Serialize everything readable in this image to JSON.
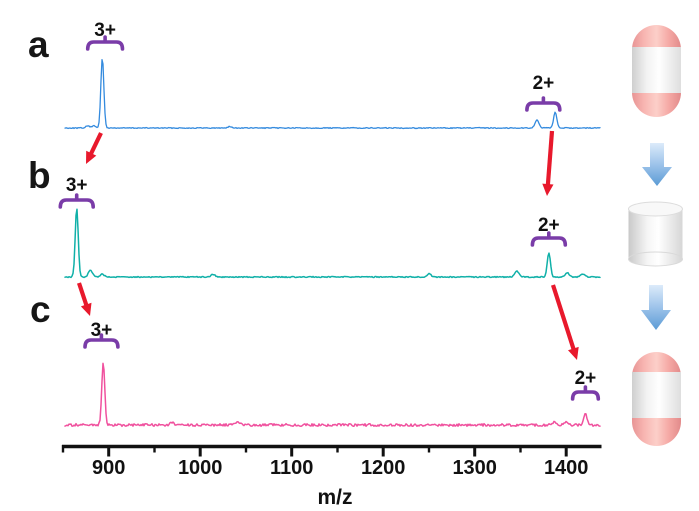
{
  "figure": {
    "panels": [
      {
        "id": "a",
        "label": "a"
      },
      {
        "id": "b",
        "label": "b"
      },
      {
        "id": "c",
        "label": "c"
      }
    ]
  },
  "chart_data": {
    "type": "line",
    "xlabel": "m/z",
    "x_axis": {
      "range": [
        850,
        1438
      ],
      "major_ticks": [
        900,
        1000,
        1100,
        1200,
        1300,
        1400
      ],
      "minor_ticks": [
        850,
        950,
        1050,
        1150,
        1250,
        1350
      ]
    },
    "spectra": [
      {
        "panel": "a",
        "color": "#338ade",
        "peaks": [
          {
            "mz": 877,
            "rel_intensity": 3
          },
          {
            "mz": 884,
            "rel_intensity": 3
          },
          {
            "mz": 893,
            "rel_intensity": 100,
            "label": "3+",
            "bracket_mz": [
              877,
              915
            ]
          },
          {
            "mz": 1032,
            "rel_intensity": 2
          },
          {
            "mz": 1368,
            "rel_intensity": 11
          },
          {
            "mz": 1388,
            "rel_intensity": 23,
            "label": "2+",
            "bracket_mz": [
              1357,
              1393
            ]
          }
        ]
      },
      {
        "panel": "b",
        "color": "#10b0a8",
        "peaks": [
          {
            "mz": 865,
            "rel_intensity": 100,
            "label": "3+",
            "bracket_mz": [
              847,
              883
            ]
          },
          {
            "mz": 880,
            "rel_intensity": 10
          },
          {
            "mz": 893,
            "rel_intensity": 4
          },
          {
            "mz": 1014,
            "rel_intensity": 4
          },
          {
            "mz": 1250,
            "rel_intensity": 5
          },
          {
            "mz": 1346,
            "rel_intensity": 9
          },
          {
            "mz": 1381,
            "rel_intensity": 35,
            "label": "2+",
            "bracket_mz": [
              1363,
              1399
            ]
          },
          {
            "mz": 1401,
            "rel_intensity": 6
          },
          {
            "mz": 1418,
            "rel_intensity": 4
          }
        ]
      },
      {
        "panel": "c",
        "color": "#f0519e",
        "peaks": [
          {
            "mz": 894,
            "rel_intensity": 100,
            "label": "3+",
            "bracket_mz": [
              874,
              910
            ]
          },
          {
            "mz": 969,
            "rel_intensity": 5
          },
          {
            "mz": 1041,
            "rel_intensity": 6
          },
          {
            "mz": 1388,
            "rel_intensity": 5
          },
          {
            "mz": 1400,
            "rel_intensity": 5
          },
          {
            "mz": 1421,
            "rel_intensity": 19,
            "label": "2+",
            "bracket_mz": [
              1407,
              1435
            ]
          }
        ]
      }
    ],
    "annotations": {
      "red_arrows": [
        {
          "from": "a 3+",
          "to": "b 3+"
        },
        {
          "from": "a 2+",
          "to": "b 2+"
        },
        {
          "from": "b 3+",
          "to": "c 3+"
        },
        {
          "from": "b 2+",
          "to": "c 2+"
        }
      ]
    }
  },
  "side_diagram": {
    "items": [
      "closed-capsule",
      "down-arrow",
      "open-cylinder",
      "down-arrow",
      "closed-capsule"
    ]
  },
  "colors": {
    "spectrum_a": "#338ade",
    "spectrum_b": "#10b0a8",
    "spectrum_c": "#f0519e",
    "red_arrow": "#e8192c",
    "bracket_purple": "#7a3ca8",
    "blue_arrow": "#6fa8dc",
    "capsule_pink": "#f5a9a5",
    "axis": "#111111"
  }
}
